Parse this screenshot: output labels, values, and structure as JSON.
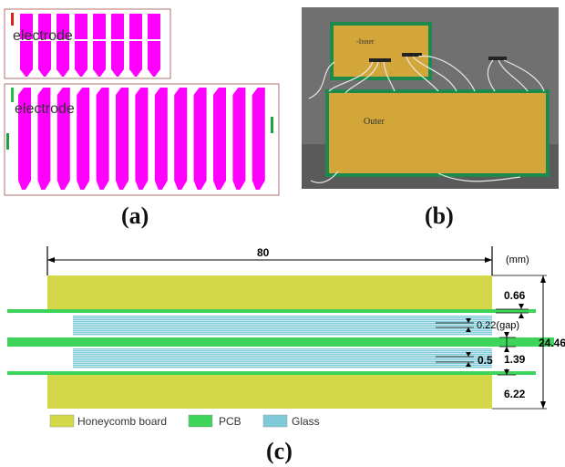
{
  "panels": {
    "a": {
      "label": "(a)",
      "top_text": "electrode",
      "bottom_text": "electrode"
    },
    "b": {
      "label": "(b)",
      "inner_text": "-Inner",
      "outer_text": "Outer"
    },
    "c": {
      "label": "(c)"
    }
  },
  "diagram_c": {
    "unit": "(mm)",
    "width_label": "80",
    "total_height_label": "24.46",
    "annotations": {
      "outer_pcb": "0.66",
      "gap": "0.22(gap)",
      "middle_pcb": "1.39",
      "glass": "0.5",
      "honeycomb": "6.22"
    },
    "legend": [
      "Honeycomb board",
      "PCB",
      "Glass"
    ]
  },
  "colors": {
    "magenta": "#ff00ff",
    "honeycomb": "#d4d848",
    "pcb": "#3ed35a",
    "glass": "#7ecad8",
    "photo_board": "#d3a63a"
  }
}
